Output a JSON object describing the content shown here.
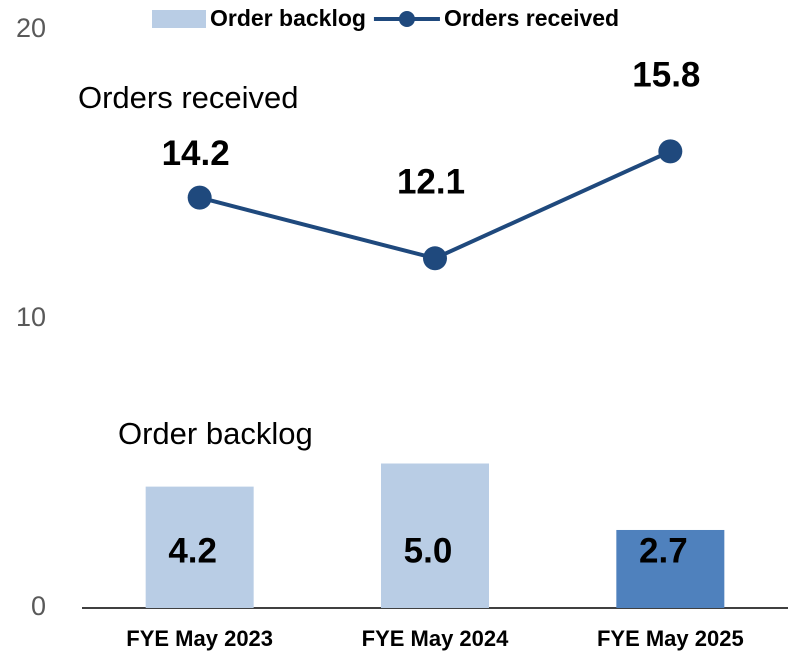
{
  "chart_data": {
    "type": "bar_line",
    "categories": [
      "FYE May 2023",
      "FYE May 2024",
      "FYE May 2025"
    ],
    "series": [
      {
        "name": "Order backlog",
        "type": "bar",
        "color": "#b9cde5",
        "colors": [
          "#b9cde5",
          "#b9cde5",
          "#4f81bd"
        ],
        "values": [
          4.2,
          5.0,
          2.7
        ],
        "value_labels": [
          "4.2",
          "5.0",
          "2.7"
        ]
      },
      {
        "name": "Orders received",
        "type": "line",
        "color": "#1f497d",
        "values": [
          14.2,
          12.1,
          15.8
        ]
      }
    ],
    "annotations": [
      "Orders received",
      "Order backlog"
    ],
    "ylim": [
      0,
      20
    ],
    "yticks": [
      0,
      10,
      20
    ],
    "legend": "top"
  }
}
